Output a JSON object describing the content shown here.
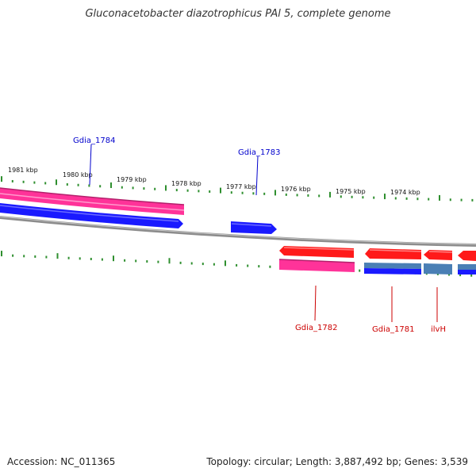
{
  "title": "Gluconacetobacter diazotrophicus PAl 5, complete genome",
  "footer": {
    "accession": "Accession: NC_011365",
    "topology": "Topology: circular; Length: 3,887,492 bp; Genes: 3,539"
  },
  "colors": {
    "backbone": "#8c8c8c",
    "tick": "#2f8f2f",
    "forward_cds": "#ff1a1a",
    "forward_gene": "#ff3399",
    "reverse_gene": "#1a1aff",
    "steel": "#4a7fb5",
    "label_forward": "#cc0000",
    "label_reverse": "#0000cc"
  },
  "kbp_markers": [
    "1981 kbp",
    "1980 kbp",
    "1979 kbp",
    "1978 kbp",
    "1977 kbp",
    "1976 kbp",
    "1975 kbp",
    "1974 kbp"
  ],
  "gene_labels": [
    {
      "id": "gdia-1784",
      "text": "Gdia_1784",
      "strand": "reverse"
    },
    {
      "id": "gdia-1783",
      "text": "Gdia_1783",
      "strand": "reverse"
    },
    {
      "id": "gdia-1782",
      "text": "Gdia_1782",
      "strand": "forward"
    },
    {
      "id": "gdia-1781",
      "text": "Gdia_1781",
      "strand": "forward"
    },
    {
      "id": "ilvh",
      "text": "ilvH",
      "strand": "forward"
    }
  ]
}
